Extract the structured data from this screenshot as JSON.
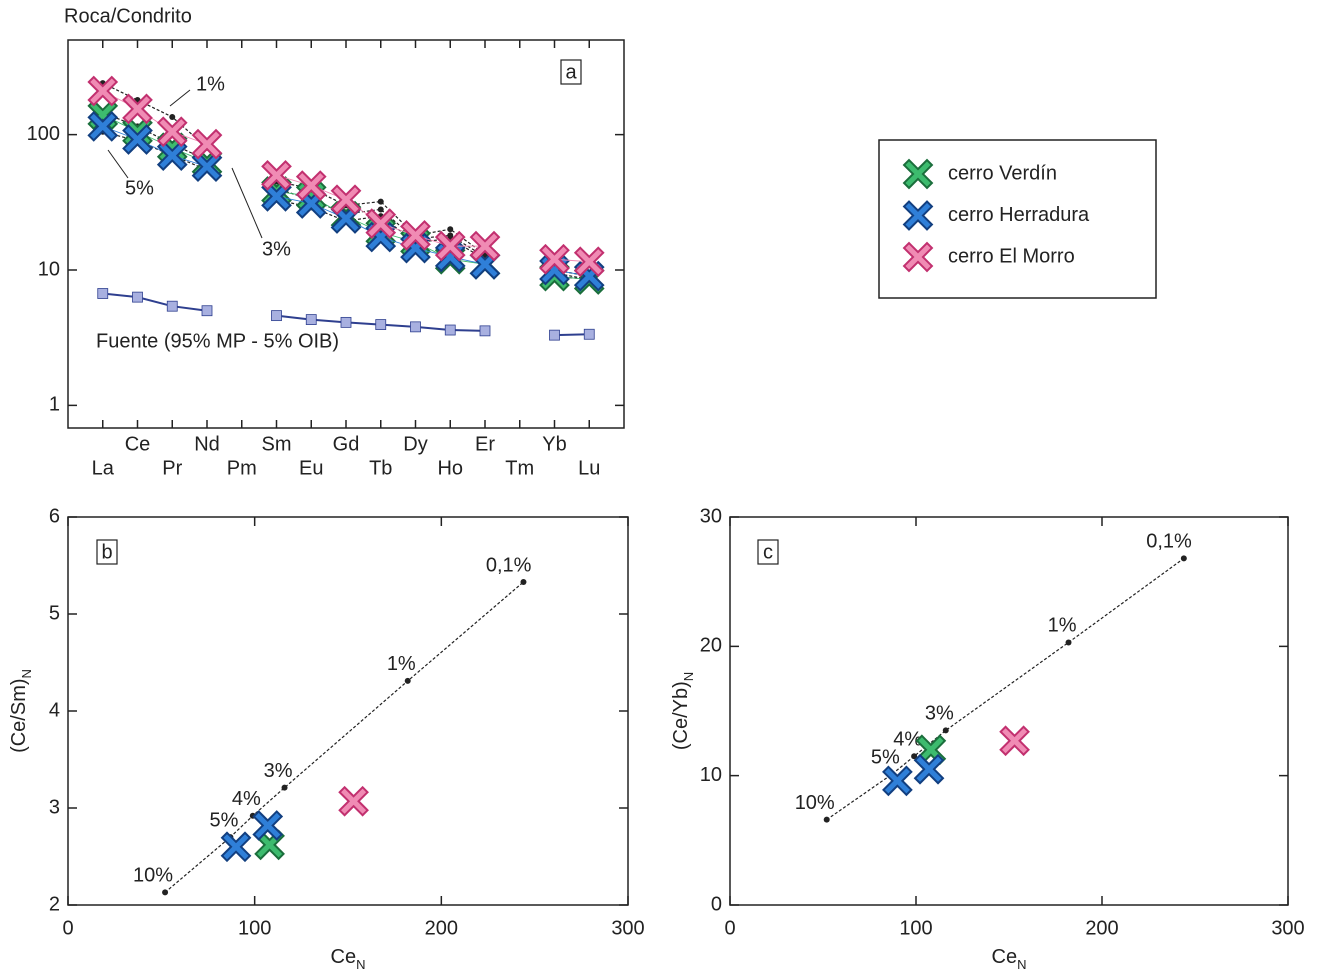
{
  "chart_data": [
    {
      "type": "line",
      "log_y": true,
      "label": "a",
      "ylabel": "Roca/Condrito",
      "legend": "right",
      "categories": [
        "La",
        "Ce",
        "Pr",
        "Nd",
        "Pm",
        "Sm",
        "Eu",
        "Gd",
        "Tb",
        "Dy",
        "Ho",
        "Er",
        "Tm",
        "Yb",
        "Lu"
      ],
      "ylim": [
        0.68,
        500
      ],
      "yticks": [
        1,
        10,
        100
      ],
      "series": [
        {
          "name": "cerro Verdín",
          "kind": "sample",
          "color": "#3dbb6e",
          "edge_color": "#1b6e3c",
          "values": [
            140,
            105,
            80,
            62,
            null,
            38,
            35,
            25,
            19,
            16,
            12,
            11,
            null,
            9,
            8.5
          ]
        },
        {
          "name": "cerro Herradura",
          "kind": "sample",
          "color": "#2f7fd8",
          "edge_color": "#123f80",
          "values": [
            115,
            92,
            70,
            58,
            null,
            35,
            31,
            24,
            17.5,
            14.5,
            12.5,
            11,
            null,
            10,
            9
          ]
        },
        {
          "name": "cerro El Morro",
          "kind": "sample",
          "color": "#f08bb4",
          "edge_color": "#c2306f",
          "values": [
            210,
            155,
            105,
            85,
            null,
            50,
            42,
            33,
            22,
            18,
            15,
            15,
            null,
            12,
            11.5
          ]
        },
        {
          "name": "1%",
          "kind": "model",
          "color": "#222222",
          "values": [
            240,
            180,
            135,
            80,
            null,
            45,
            40,
            30,
            32,
            18,
            20,
            13,
            null,
            10,
            9
          ]
        },
        {
          "name": "3%",
          "kind": "model",
          "color": "#222222",
          "values": [
            145,
            115,
            85,
            65,
            null,
            40,
            33,
            26,
            28,
            17,
            18,
            12.5,
            null,
            9.5,
            8.5
          ]
        },
        {
          "name": "5%",
          "kind": "model",
          "color": "#222222",
          "values": [
            105,
            90,
            70,
            55,
            null,
            33,
            29,
            23,
            25,
            16,
            17,
            12,
            null,
            9,
            8.5
          ]
        },
        {
          "name": "Fuente (95% MP - 5% OIB)",
          "kind": "source",
          "color": "#2e3f8f",
          "marker_color": "#a8b0e0",
          "values": [
            6.7,
            6.3,
            5.4,
            5.0,
            null,
            4.6,
            4.3,
            4.1,
            3.95,
            3.8,
            3.6,
            3.55,
            null,
            3.3,
            3.35
          ]
        }
      ]
    },
    {
      "type": "scatter",
      "label": "b",
      "xlabel": "Ce",
      "xlabel_subscript": "N",
      "ylabel": "(Ce/Sm)",
      "ylabel_subscript": "N",
      "xlim": [
        0,
        300
      ],
      "xticks": [
        0,
        100,
        200,
        300
      ],
      "ylim": [
        2,
        6
      ],
      "yticks": [
        2,
        3,
        4,
        5,
        6
      ],
      "series": [
        {
          "kind": "model",
          "color": "#222222",
          "x": [
            52,
            87,
            99,
            116,
            182,
            244
          ],
          "values": [
            2.13,
            2.7,
            2.92,
            3.21,
            4.31,
            5.33
          ],
          "point_labels": [
            "10%",
            "5%",
            "4%",
            "3%",
            "1%",
            "0,1%"
          ]
        },
        {
          "kind": "sample",
          "color": "#3dbb6e",
          "edge_color": "#1b6e3c",
          "x": [
            108
          ],
          "values": [
            2.62
          ]
        },
        {
          "kind": "sample",
          "color": "#2f7fd8",
          "edge_color": "#123f80",
          "x": [
            90,
            107
          ],
          "values": [
            2.6,
            2.82
          ]
        },
        {
          "kind": "sample",
          "color": "#f08bb4",
          "edge_color": "#c2306f",
          "x": [
            153
          ],
          "values": [
            3.07
          ]
        }
      ]
    },
    {
      "type": "scatter",
      "label": "c",
      "xlabel": "Ce",
      "xlabel_subscript": "N",
      "ylabel": "(Ce/Yb)",
      "ylabel_subscript": "N",
      "xlim": [
        0,
        300
      ],
      "xticks": [
        0,
        100,
        200,
        300
      ],
      "ylim": [
        0,
        30
      ],
      "yticks": [
        0,
        10,
        20,
        30
      ],
      "series": [
        {
          "kind": "model",
          "color": "#222222",
          "x": [
            52,
            87,
            99,
            116,
            182,
            244
          ],
          "values": [
            6.6,
            10.1,
            11.5,
            13.5,
            20.3,
            26.8
          ],
          "point_labels": [
            "10%",
            "5%",
            "4%",
            "3%",
            "1%",
            "0,1%"
          ]
        },
        {
          "kind": "sample",
          "color": "#3dbb6e",
          "edge_color": "#1b6e3c",
          "x": [
            108
          ],
          "values": [
            12
          ]
        },
        {
          "kind": "sample",
          "color": "#2f7fd8",
          "edge_color": "#123f80",
          "x": [
            90,
            107
          ],
          "values": [
            9.6,
            10.5
          ]
        },
        {
          "kind": "sample",
          "color": "#f08bb4",
          "edge_color": "#c2306f",
          "x": [
            153
          ],
          "values": [
            12.7
          ]
        }
      ]
    }
  ]
}
